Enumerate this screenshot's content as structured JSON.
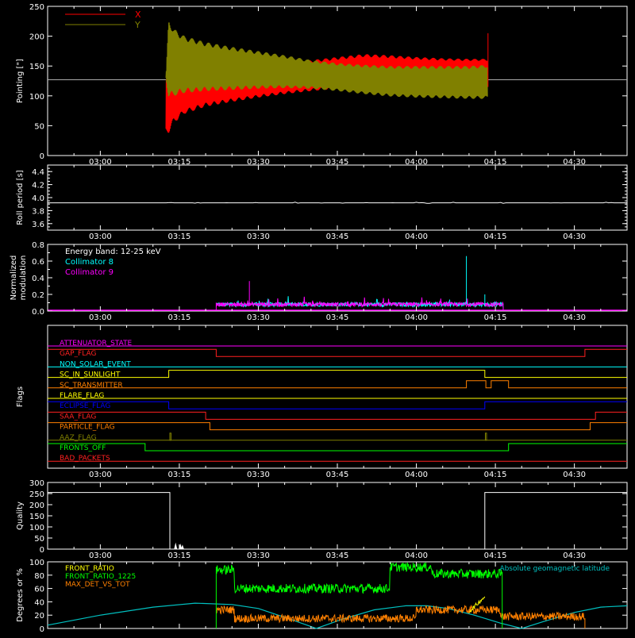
{
  "chart_data": [
    {
      "type": "line",
      "panel": "pointing",
      "ylabel": "Pointing [\"]",
      "ylim": [
        0,
        250
      ],
      "yticks": [
        0,
        50,
        100,
        150,
        200,
        250
      ],
      "xlim_min": [
        -10,
        100
      ],
      "xtick_labels": [
        "03:00",
        "03:15",
        "03:30",
        "03:45",
        "04:00",
        "04:15",
        "04:30"
      ],
      "xtick_min": [
        0,
        15,
        30,
        45,
        60,
        75,
        90
      ],
      "legend": [
        {
          "name": "X",
          "color": "#ff0000"
        },
        {
          "name": "Y",
          "color": "#808000"
        }
      ],
      "baseline_value": 127,
      "series": [
        {
          "name": "X",
          "color": "#ff0000",
          "envelope": {
            "t_min": [
              12.5,
              13.0,
              14.0,
              16.0,
              20.0,
              25.0,
              30.0,
              35.0,
              40.0,
              45.0,
              50.0,
              55.0,
              60.0,
              65.0,
              70.0,
              73.5
            ],
            "low": [
              40,
              38,
              55,
              70,
              82,
              90,
              97,
              103,
              108,
              112,
              114,
              116,
              118,
              120,
              122,
              124
            ],
            "high": [
              125,
              190,
              165,
              160,
              158,
              156,
              155,
              156,
              160,
              165,
              170,
              168,
              165,
              163,
              162,
              162
            ]
          }
        },
        {
          "name": "Y",
          "color": "#808000",
          "envelope": {
            "t_min": [
              12.5,
              13.0,
              14.0,
              16.0,
              20.0,
              25.0,
              30.0,
              35.0,
              40.0,
              45.0,
              50.0,
              55.0,
              60.0,
              65.0,
              70.0,
              73.5
            ],
            "low": [
              130,
              95,
              100,
              105,
              108,
              110,
              112,
              113,
              112,
              108,
              103,
              99,
              97,
              96,
              95,
              95
            ],
            "high": [
              130,
              228,
              212,
              200,
              190,
              182,
              175,
              168,
              160,
              155,
              152,
              150,
              150,
              150,
              150,
              152
            ]
          }
        }
      ]
    },
    {
      "type": "line",
      "panel": "roll_period",
      "ylabel": "Roll period [s]",
      "ylim": [
        3.5,
        4.5
      ],
      "yticks": [
        3.6,
        3.8,
        4.0,
        4.2,
        4.4
      ],
      "ytick_labels": [
        "3.6",
        "3.8",
        "4.0",
        "4.2",
        "4.4"
      ],
      "xtick_labels": [
        "03:00",
        "03:15",
        "03:30",
        "03:45",
        "04:00",
        "04:15",
        "04:30"
      ],
      "series": [
        {
          "name": "roll",
          "color": "#ffffff",
          "value": 3.92
        }
      ]
    },
    {
      "type": "line",
      "panel": "modulation",
      "ylabel": "Normalized modulation",
      "ylabel_lines": [
        "Normalized",
        "modulation"
      ],
      "ylim": [
        0,
        0.8
      ],
      "yticks": [
        0,
        0.2,
        0.4,
        0.6,
        0.8
      ],
      "ytick_labels": [
        "0.0",
        "0.2",
        "0.4",
        "0.6",
        "0.8"
      ],
      "xtick_labels": [
        "03:00",
        "03:15",
        "03:30",
        "03:45",
        "04:00",
        "04:15",
        "04:30"
      ],
      "annotation": "Energy band: 12-25 keV",
      "legend": [
        {
          "name": "Collimator 8",
          "color": "#00ffff"
        },
        {
          "name": "Collimator 9",
          "color": "#ff00ff"
        }
      ],
      "active_range_min": [
        22,
        76.5
      ],
      "typical_level": 0.08,
      "spikes": [
        {
          "t_min": 28.3,
          "value": 0.36,
          "color": "#ff00ff"
        },
        {
          "t_min": 69.5,
          "value": 0.66,
          "color": "#00ffff"
        },
        {
          "t_min": 73.0,
          "value": 0.2,
          "color": "#00ffff"
        }
      ]
    },
    {
      "type": "line",
      "panel": "flags",
      "ylabel": "Flags",
      "xtick_labels": [
        "03:00",
        "03:15",
        "03:30",
        "03:45",
        "04:00",
        "04:15",
        "04:30"
      ],
      "flags": [
        {
          "name": "ATTENUATOR_STATE",
          "color": "#ff00ff",
          "segments": [
            [
              -10,
              100,
              0
            ]
          ]
        },
        {
          "name": "GAP_FLAG",
          "color": "#ff2020",
          "segments": [
            [
              -10,
              22,
              1
            ],
            [
              22,
              92,
              0
            ],
            [
              92,
              100,
              1
            ]
          ]
        },
        {
          "name": "NON_SOLAR_EVENT",
          "color": "#00ffff",
          "segments": [
            [
              -10,
              100,
              0
            ]
          ]
        },
        {
          "name": "SC_IN_SUNLIGHT",
          "color": "#ffff00",
          "segments": [
            [
              -10,
              13,
              0
            ],
            [
              13,
              73,
              1
            ],
            [
              73,
              100,
              0
            ]
          ]
        },
        {
          "name": "SC_TRANSMITTER",
          "color": "#ff8000",
          "segments": [
            [
              -10,
              69.5,
              0
            ],
            [
              69.5,
              73.2,
              1
            ],
            [
              73.2,
              74.2,
              0
            ],
            [
              74.2,
              77.5,
              1
            ],
            [
              77.5,
              100,
              0
            ]
          ]
        },
        {
          "name": "FLARE_FLAG",
          "color": "#ffff00",
          "segments": [
            [
              -10,
              100,
              0
            ]
          ]
        },
        {
          "name": "ECLIPSE_FLAG",
          "color": "#0000ff",
          "segments": [
            [
              -10,
              13,
              1
            ],
            [
              13,
              73,
              0
            ],
            [
              73,
              100,
              1
            ]
          ]
        },
        {
          "name": "SAA_FLAG",
          "color": "#ff2020",
          "segments": [
            [
              -10,
              20,
              1
            ],
            [
              20,
              94,
              0
            ],
            [
              94,
              100,
              1
            ]
          ]
        },
        {
          "name": "PARTICLE_FLAG",
          "color": "#ff8000",
          "segments": [
            [
              -10,
              20.8,
              1
            ],
            [
              20.8,
              21.5,
              0
            ],
            [
              21.5,
              93,
              0
            ],
            [
              93,
              100,
              1
            ]
          ]
        },
        {
          "name": "AAZ_FLAG",
          "color": "#808000",
          "segments": [
            [
              -10,
              100,
              0
            ]
          ],
          "pulses_min": [
            13.2,
            73.1
          ]
        },
        {
          "name": "FRONTS_OFF",
          "color": "#00ff00",
          "segments": [
            [
              -10,
              8.5,
              1
            ],
            [
              8.5,
              77.5,
              0
            ],
            [
              77.5,
              100,
              1
            ]
          ]
        },
        {
          "name": "BAD_PACKETS",
          "color": "#ff2020",
          "segments": [
            [
              -10,
              100,
              0
            ]
          ]
        }
      ]
    },
    {
      "type": "line",
      "panel": "quality",
      "ylabel": "Quality",
      "ylim": [
        0,
        300
      ],
      "yticks": [
        0,
        50,
        100,
        150,
        200,
        250,
        300
      ],
      "xtick_labels": [
        "03:00",
        "03:15",
        "03:30",
        "03:45",
        "04:00",
        "04:15",
        "04:30"
      ],
      "series": [
        {
          "name": "quality",
          "color": "#ffffff",
          "steps": [
            [
              -10,
              13.2,
              255
            ],
            [
              13.2,
              73.0,
              0
            ],
            [
              73.0,
              100,
              255
            ]
          ],
          "blips_min": [
            [
              14.3,
              30
            ],
            [
              15.2,
              25
            ],
            [
              15.6,
              20
            ]
          ]
        }
      ]
    },
    {
      "type": "line",
      "panel": "ratios",
      "ylabel": "Degrees or %",
      "ylim": [
        0,
        100
      ],
      "yticks": [
        0,
        20,
        40,
        60,
        80,
        100
      ],
      "xtick_labels": [
        "03:00",
        "03:15",
        "03:30",
        "03:45",
        "04:00",
        "04:15",
        "04:30"
      ],
      "legend": [
        {
          "name": "FRONT_RATIO",
          "color": "#ffff00"
        },
        {
          "name": "FRONT_RATIO_1225",
          "color": "#00ff00"
        },
        {
          "name": "MAX_DET_VS_TOT",
          "color": "#ff8000"
        }
      ],
      "right_legend": {
        "name": "Absolute geomagnetic latitude",
        "color": "#00c0c0"
      },
      "series": [
        {
          "name": "Absolute geomagnetic latitude",
          "color": "#00c0c0",
          "points_min": [
            [
              -10,
              5
            ],
            [
              0,
              20
            ],
            [
              10,
              32
            ],
            [
              18,
              38
            ],
            [
              25,
              36
            ],
            [
              30,
              30
            ],
            [
              36,
              14
            ],
            [
              41,
              0
            ],
            [
              46,
              14
            ],
            [
              52,
              28
            ],
            [
              58,
              34
            ],
            [
              62,
              34
            ],
            [
              66,
              30
            ],
            [
              71,
              20
            ],
            [
              76,
              8
            ],
            [
              80,
              0
            ],
            [
              84,
              10
            ],
            [
              90,
              24
            ],
            [
              95,
              32
            ],
            [
              100,
              34
            ]
          ]
        },
        {
          "name": "FRONT_RATIO_1225",
          "color": "#00ff00",
          "levels_min": [
            [
              22,
              25.5,
              88
            ],
            [
              25.5,
              55,
              60
            ],
            [
              55,
              63,
              92
            ],
            [
              63,
              76.3,
              82
            ]
          ]
        },
        {
          "name": "FRONT_RATIO",
          "color": "#ffff00",
          "bumps_min": [
            [
              70,
              73,
              25,
              48
            ]
          ]
        },
        {
          "name": "MAX_DET_VS_TOT",
          "color": "#ff8000",
          "levels_min": [
            [
              22,
              25.5,
              28
            ],
            [
              25.5,
              60,
              15
            ],
            [
              60,
              76,
              28
            ],
            [
              76,
              92,
              18
            ]
          ]
        }
      ]
    }
  ]
}
